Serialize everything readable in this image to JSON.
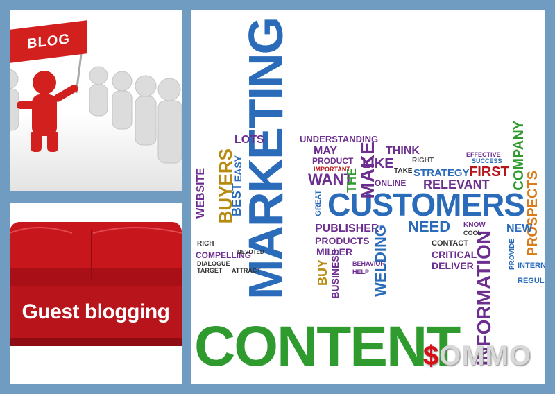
{
  "left_top": {
    "sign_text": "BLOG"
  },
  "left_bottom": {
    "banner_text": "Guest blogging"
  },
  "cloud": {
    "content": "CONTENT",
    "marketing": "MARKETING",
    "customers": "CUSTOMERS",
    "information": "INFORMATION",
    "buyers": "BUYERS",
    "website": "WEBSITE",
    "best": "BEST",
    "easy": "EASY",
    "lots": "LOTS",
    "want": "WANT",
    "the": "THE",
    "make": "MAKE",
    "like": "LIKE",
    "think": "THINK",
    "right": "RIGHT",
    "strategy": "STRATEGY",
    "first": "FIRST",
    "relevant": "RELEVANT",
    "company": "COMPANY",
    "prospects": "PROSPECTS",
    "need": "NEED",
    "publisher": "PUBLISHER",
    "products": "PRODUCTS",
    "compelling": "COMPELLING",
    "miller": "MILLER",
    "welding": "WELDING",
    "business": "BUSINESS",
    "buy": "BUY",
    "critical": "CRITICAL",
    "deliver": "DELIVER",
    "contact": "CONTACT",
    "new": "NEW",
    "internet": "INTERN",
    "regular": "REGULA",
    "understanding": "UNDERSTANDING",
    "may": "MAY",
    "product": "PRODUCT",
    "important": "IMPORTANT",
    "online": "ONLINE",
    "take": "TAKE",
    "effective": "EFFECTIVE",
    "success": "SUCCESS",
    "rich": "RICH",
    "dialogue": "DIALOGUE",
    "target": "TARGET",
    "attract": "ATTRACT",
    "devoted": "DEVOTED",
    "great": "GREAT",
    "know": "KNOW",
    "cool": "COOL",
    "provide": "PROVIDE",
    "behavior": "BEHAVIOR",
    "help": "HELP"
  },
  "watermark": {
    "dollar": "$",
    "text": "OMMO"
  },
  "colors": {
    "background": "#6f9cc0",
    "red": "#d2201f",
    "green": "#2f9b2f",
    "blue": "#2a6cb9",
    "purple": "#6c2e8f",
    "orange": "#d97a1b"
  }
}
